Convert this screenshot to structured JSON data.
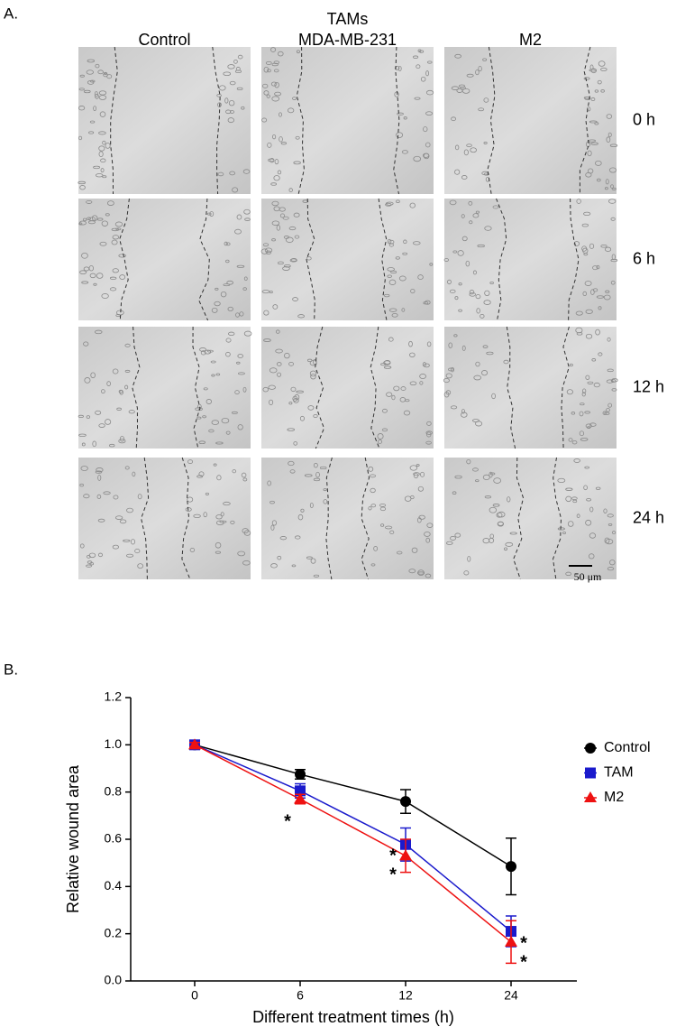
{
  "panel_labels": [
    "A.",
    "B."
  ],
  "image_grid": {
    "columns": [
      [
        "Control"
      ],
      [
        "TAMs",
        "MDA-MB-231"
      ],
      [
        "M2"
      ]
    ],
    "rows": [
      "0 h",
      "6 h",
      "12 h",
      "24 h"
    ],
    "scale_bar": "50 μm"
  },
  "chart_data": {
    "type": "line",
    "x_label": "Different treatment times (h)",
    "y_label": "Relative wound area",
    "categories": [
      "0",
      "6",
      "12",
      "24"
    ],
    "series": [
      {
        "name": "Control",
        "color": "#000000",
        "marker": "circle",
        "values": [
          1.0,
          0.875,
          0.76,
          0.485
        ],
        "errors": [
          0.01,
          0.02,
          0.05,
          0.12
        ]
      },
      {
        "name": "TAM",
        "color": "#1a1acc",
        "marker": "square",
        "values": [
          1.0,
          0.805,
          0.578,
          0.21
        ],
        "errors": [
          0.01,
          0.03,
          0.07,
          0.065
        ]
      },
      {
        "name": "M2",
        "color": "#ee1111",
        "marker": "triangle",
        "values": [
          1.0,
          0.77,
          0.53,
          0.165
        ],
        "errors": [
          0.01,
          0.02,
          0.07,
          0.09
        ]
      }
    ],
    "ylim": [
      0,
      1.2
    ],
    "yticks": [
      {
        "value": 0,
        "label": "0.0"
      },
      0.2,
      0.4,
      0.6,
      0.8,
      {
        "value": 1,
        "label": "1.0"
      },
      1.2
    ],
    "annotations": [
      {
        "text": "*",
        "x": "6",
        "y": 0.69
      },
      {
        "text": "*",
        "x": "12",
        "y": 0.545
      },
      {
        "text": "*",
        "x": "12",
        "y": 0.465
      },
      {
        "text": "*",
        "x": "24",
        "y": 0.175
      },
      {
        "text": "*",
        "x": "24",
        "y": 0.095
      }
    ],
    "legend": "right"
  }
}
